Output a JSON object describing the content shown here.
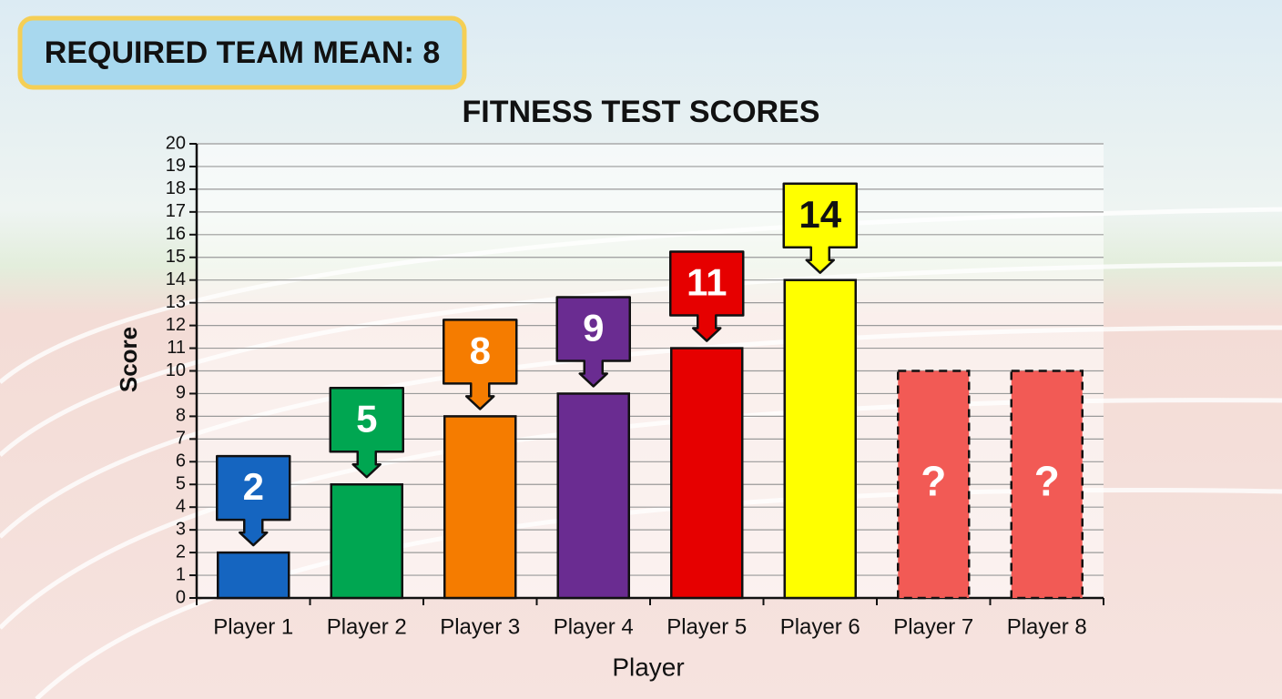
{
  "chart_data": {
    "type": "bar",
    "title": "FITNESS TEST SCORES",
    "annotations": [
      "REQUIRED TEAM MEAN: 8"
    ],
    "xlabel": "Player",
    "ylabel": "Score",
    "categories": [
      "Player 1",
      "Player 2",
      "Player 3",
      "Player 4",
      "Player 5",
      "Player 6",
      "Player 7",
      "Player 8"
    ],
    "values": [
      2,
      5,
      8,
      9,
      11,
      14,
      10,
      10
    ],
    "value_labels": [
      "2",
      "5",
      "8",
      "9",
      "11",
      "14",
      "?",
      "?"
    ],
    "colors": [
      "#1565c0",
      "#00a651",
      "#f57c00",
      "#6a2c91",
      "#e60000",
      "#ffff00",
      "#f25a55",
      "#f25a55"
    ],
    "dashed": [
      false,
      false,
      false,
      false,
      false,
      false,
      true,
      true
    ],
    "ylim": [
      0,
      20
    ],
    "yticks": [
      0,
      1,
      2,
      3,
      4,
      5,
      6,
      7,
      8,
      9,
      10,
      11,
      12,
      13,
      14,
      15,
      16,
      17,
      18,
      19,
      20
    ],
    "grid": true
  }
}
